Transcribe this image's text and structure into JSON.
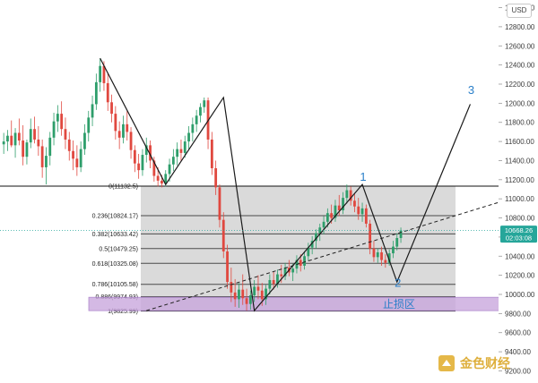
{
  "chart_data": {
    "type": "candlestick",
    "currency": "USD",
    "y_axis": {
      "ticks": [
        "9200.00",
        "9400.00",
        "9600.00",
        "9800.00",
        "10000.00",
        "10200.00",
        "10400.00",
        "10600.00",
        "10800.00",
        "11000.00",
        "11200.00",
        "11400.00",
        "11600.00",
        "11800.00",
        "12000.00",
        "12200.00",
        "12400.00",
        "12600.00",
        "12800.00",
        "13000.00"
      ],
      "ylim": [
        9120,
        13080
      ],
      "scale": "linear"
    },
    "current_price": {
      "value": 10668.26,
      "label": "10668.26",
      "countdown": "02:03:08",
      "color": "#26a69a"
    },
    "fibonacci_retracement": {
      "levels": [
        {
          "ratio": "0",
          "price": 11132.5,
          "label": "0(11132.5)"
        },
        {
          "ratio": "0.236",
          "price": 10824.17,
          "label": "0.236(10824.17)"
        },
        {
          "ratio": "0.382",
          "price": 10633.42,
          "label": "0.382(10633.42)"
        },
        {
          "ratio": "0.5",
          "price": 10479.25,
          "label": "0.5(10479.25)"
        },
        {
          "ratio": "0.618",
          "price": 10325.08,
          "label": "0.618(10325.08)"
        },
        {
          "ratio": "0.786",
          "price": 10105.58,
          "label": "0.786(10105.58)"
        },
        {
          "ratio": "0.886",
          "price": 9974.93,
          "label": "0.886(9974.93)"
        },
        {
          "ratio": "1",
          "price": 9825.99,
          "label": "1(9825.99)"
        }
      ],
      "fill_color": "#d3d3d3"
    },
    "stop_loss_zone": {
      "label": "止损区",
      "price_top": 9970,
      "price_bottom": 9830,
      "color": "#c9a6dd"
    },
    "horizontal_line": {
      "price": 11132.5
    },
    "elliott_wave_labels": [
      {
        "text": "1",
        "time_index": 93,
        "price": 11150
      },
      {
        "text": "2",
        "time_index": 102,
        "price": 10040
      },
      {
        "text": "3",
        "time_index": 121,
        "price": 12060
      }
    ],
    "wave_path": [
      {
        "time_index": 25,
        "price": 12470
      },
      {
        "time_index": 42,
        "price": 11150
      },
      {
        "time_index": 57,
        "price": 12060
      },
      {
        "time_index": 65,
        "price": 9830
      },
      {
        "time_index": 93,
        "price": 11150
      },
      {
        "time_index": 102,
        "price": 10130
      },
      {
        "time_index": 121,
        "price": 11990
      }
    ],
    "trendline": {
      "from": {
        "time_index": 37,
        "price": 9830
      },
      "to": {
        "time_index": 142,
        "price": 11132
      },
      "style": "dashed"
    },
    "candles": [
      {
        "o": 11570,
        "h": 11690,
        "l": 11470,
        "c": 11600
      },
      {
        "o": 11600,
        "h": 11720,
        "l": 11500,
        "c": 11660
      },
      {
        "o": 11660,
        "h": 11820,
        "l": 11540,
        "c": 11560
      },
      {
        "o": 11560,
        "h": 11740,
        "l": 11430,
        "c": 11690
      },
      {
        "o": 11690,
        "h": 11840,
        "l": 11560,
        "c": 11610
      },
      {
        "o": 11610,
        "h": 11770,
        "l": 11350,
        "c": 11440
      },
      {
        "o": 11440,
        "h": 11620,
        "l": 11360,
        "c": 11590
      },
      {
        "o": 11590,
        "h": 11840,
        "l": 11530,
        "c": 11730
      },
      {
        "o": 11730,
        "h": 11860,
        "l": 11580,
        "c": 11620
      },
      {
        "o": 11620,
        "h": 11760,
        "l": 11450,
        "c": 11550
      },
      {
        "o": 11550,
        "h": 11620,
        "l": 11220,
        "c": 11330
      },
      {
        "o": 11330,
        "h": 11540,
        "l": 11150,
        "c": 11450
      },
      {
        "o": 11450,
        "h": 11700,
        "l": 11350,
        "c": 11640
      },
      {
        "o": 11640,
        "h": 11900,
        "l": 11560,
        "c": 11810
      },
      {
        "o": 11810,
        "h": 11980,
        "l": 11700,
        "c": 11890
      },
      {
        "o": 11890,
        "h": 12020,
        "l": 11660,
        "c": 11730
      },
      {
        "o": 11730,
        "h": 11850,
        "l": 11520,
        "c": 11620
      },
      {
        "o": 11620,
        "h": 11700,
        "l": 11400,
        "c": 11500
      },
      {
        "o": 11500,
        "h": 11610,
        "l": 11300,
        "c": 11420
      },
      {
        "o": 11420,
        "h": 11560,
        "l": 11240,
        "c": 11330
      },
      {
        "o": 11330,
        "h": 11600,
        "l": 11280,
        "c": 11520
      },
      {
        "o": 11520,
        "h": 11780,
        "l": 11460,
        "c": 11690
      },
      {
        "o": 11690,
        "h": 11920,
        "l": 11600,
        "c": 11850
      },
      {
        "o": 11850,
        "h": 12080,
        "l": 11760,
        "c": 11990
      },
      {
        "o": 11990,
        "h": 12310,
        "l": 11930,
        "c": 12220
      },
      {
        "o": 12220,
        "h": 12470,
        "l": 12120,
        "c": 12390
      },
      {
        "o": 12390,
        "h": 12440,
        "l": 12130,
        "c": 12210
      },
      {
        "o": 12210,
        "h": 12310,
        "l": 11920,
        "c": 12010
      },
      {
        "o": 12010,
        "h": 12090,
        "l": 11800,
        "c": 11890
      },
      {
        "o": 11890,
        "h": 11970,
        "l": 11620,
        "c": 11710
      },
      {
        "o": 11710,
        "h": 11810,
        "l": 11520,
        "c": 11640
      },
      {
        "o": 11640,
        "h": 11870,
        "l": 11580,
        "c": 11780
      },
      {
        "o": 11780,
        "h": 11920,
        "l": 11610,
        "c": 11700
      },
      {
        "o": 11700,
        "h": 11750,
        "l": 11420,
        "c": 11510
      },
      {
        "o": 11510,
        "h": 11560,
        "l": 11280,
        "c": 11370
      },
      {
        "o": 11370,
        "h": 11470,
        "l": 11210,
        "c": 11300
      },
      {
        "o": 11300,
        "h": 11520,
        "l": 11240,
        "c": 11460
      },
      {
        "o": 11460,
        "h": 11640,
        "l": 11380,
        "c": 11560
      },
      {
        "o": 11560,
        "h": 11610,
        "l": 11320,
        "c": 11400
      },
      {
        "o": 11400,
        "h": 11440,
        "l": 11180,
        "c": 11240
      },
      {
        "o": 11240,
        "h": 11330,
        "l": 11130,
        "c": 11190
      },
      {
        "o": 11190,
        "h": 11250,
        "l": 11120,
        "c": 11160
      },
      {
        "o": 11160,
        "h": 11300,
        "l": 11130,
        "c": 11260
      },
      {
        "o": 11260,
        "h": 11420,
        "l": 11180,
        "c": 11360
      },
      {
        "o": 11360,
        "h": 11520,
        "l": 11290,
        "c": 11440
      },
      {
        "o": 11440,
        "h": 11590,
        "l": 11350,
        "c": 11520
      },
      {
        "o": 11520,
        "h": 11620,
        "l": 11400,
        "c": 11480
      },
      {
        "o": 11480,
        "h": 11660,
        "l": 11430,
        "c": 11600
      },
      {
        "o": 11600,
        "h": 11760,
        "l": 11520,
        "c": 11690
      },
      {
        "o": 11690,
        "h": 11850,
        "l": 11600,
        "c": 11780
      },
      {
        "o": 11780,
        "h": 11930,
        "l": 11700,
        "c": 11870
      },
      {
        "o": 11870,
        "h": 12000,
        "l": 11800,
        "c": 11960
      },
      {
        "o": 11960,
        "h": 12060,
        "l": 11900,
        "c": 12030
      },
      {
        "o": 12030,
        "h": 12060,
        "l": 11520,
        "c": 11620
      },
      {
        "o": 11620,
        "h": 11700,
        "l": 11250,
        "c": 11320
      },
      {
        "o": 11320,
        "h": 11400,
        "l": 11040,
        "c": 11120
      },
      {
        "o": 11120,
        "h": 11150,
        "l": 10700,
        "c": 10780
      },
      {
        "o": 10780,
        "h": 10860,
        "l": 10380,
        "c": 10450
      },
      {
        "o": 10450,
        "h": 10520,
        "l": 10060,
        "c": 10130
      },
      {
        "o": 10130,
        "h": 10280,
        "l": 9920,
        "c": 10020
      },
      {
        "o": 10020,
        "h": 10160,
        "l": 9870,
        "c": 9950
      },
      {
        "o": 9950,
        "h": 10120,
        "l": 9860,
        "c": 10050
      },
      {
        "o": 10050,
        "h": 10210,
        "l": 9890,
        "c": 9960
      },
      {
        "o": 9960,
        "h": 10060,
        "l": 9830,
        "c": 9900
      },
      {
        "o": 9900,
        "h": 10040,
        "l": 9840,
        "c": 9990
      },
      {
        "o": 9990,
        "h": 10150,
        "l": 9920,
        "c": 10080
      },
      {
        "o": 10080,
        "h": 10200,
        "l": 9950,
        "c": 10040
      },
      {
        "o": 10040,
        "h": 10120,
        "l": 9880,
        "c": 9950
      },
      {
        "o": 9950,
        "h": 10100,
        "l": 9890,
        "c": 10060
      },
      {
        "o": 10060,
        "h": 10210,
        "l": 10000,
        "c": 10150
      },
      {
        "o": 10150,
        "h": 10240,
        "l": 10050,
        "c": 10110
      },
      {
        "o": 10110,
        "h": 10260,
        "l": 10070,
        "c": 10210
      },
      {
        "o": 10210,
        "h": 10310,
        "l": 10120,
        "c": 10190
      },
      {
        "o": 10190,
        "h": 10330,
        "l": 10150,
        "c": 10280
      },
      {
        "o": 10280,
        "h": 10360,
        "l": 10190,
        "c": 10230
      },
      {
        "o": 10230,
        "h": 10320,
        "l": 10140,
        "c": 10270
      },
      {
        "o": 10270,
        "h": 10410,
        "l": 10220,
        "c": 10360
      },
      {
        "o": 10360,
        "h": 10420,
        "l": 10240,
        "c": 10300
      },
      {
        "o": 10300,
        "h": 10450,
        "l": 10260,
        "c": 10400
      },
      {
        "o": 10400,
        "h": 10540,
        "l": 10350,
        "c": 10490
      },
      {
        "o": 10490,
        "h": 10610,
        "l": 10420,
        "c": 10560
      },
      {
        "o": 10560,
        "h": 10680,
        "l": 10480,
        "c": 10640
      },
      {
        "o": 10640,
        "h": 10740,
        "l": 10560,
        "c": 10700
      },
      {
        "o": 10700,
        "h": 10820,
        "l": 10630,
        "c": 10760
      },
      {
        "o": 10760,
        "h": 10900,
        "l": 10700,
        "c": 10850
      },
      {
        "o": 10850,
        "h": 10940,
        "l": 10740,
        "c": 10800
      },
      {
        "o": 10800,
        "h": 10990,
        "l": 10760,
        "c": 10930
      },
      {
        "o": 10930,
        "h": 11040,
        "l": 10820,
        "c": 10880
      },
      {
        "o": 10880,
        "h": 11070,
        "l": 10840,
        "c": 11010
      },
      {
        "o": 11010,
        "h": 11150,
        "l": 10950,
        "c": 11090
      },
      {
        "o": 11090,
        "h": 11130,
        "l": 10930,
        "c": 10980
      },
      {
        "o": 10980,
        "h": 11060,
        "l": 10860,
        "c": 10920
      },
      {
        "o": 10920,
        "h": 11010,
        "l": 10780,
        "c": 10840
      },
      {
        "o": 10840,
        "h": 10960,
        "l": 10760,
        "c": 10900
      },
      {
        "o": 10900,
        "h": 10940,
        "l": 10700,
        "c": 10740
      },
      {
        "o": 10740,
        "h": 10780,
        "l": 10420,
        "c": 10480
      },
      {
        "o": 10480,
        "h": 10560,
        "l": 10340,
        "c": 10390
      },
      {
        "o": 10390,
        "h": 10480,
        "l": 10330,
        "c": 10440
      },
      {
        "o": 10440,
        "h": 10500,
        "l": 10300,
        "c": 10360
      },
      {
        "o": 10360,
        "h": 10420,
        "l": 10280,
        "c": 10330
      },
      {
        "o": 10330,
        "h": 10470,
        "l": 10300,
        "c": 10430
      },
      {
        "o": 10430,
        "h": 10560,
        "l": 10380,
        "c": 10500
      },
      {
        "o": 10500,
        "h": 10640,
        "l": 10460,
        "c": 10590
      },
      {
        "o": 10590,
        "h": 10700,
        "l": 10540,
        "c": 10668
      }
    ]
  }
}
